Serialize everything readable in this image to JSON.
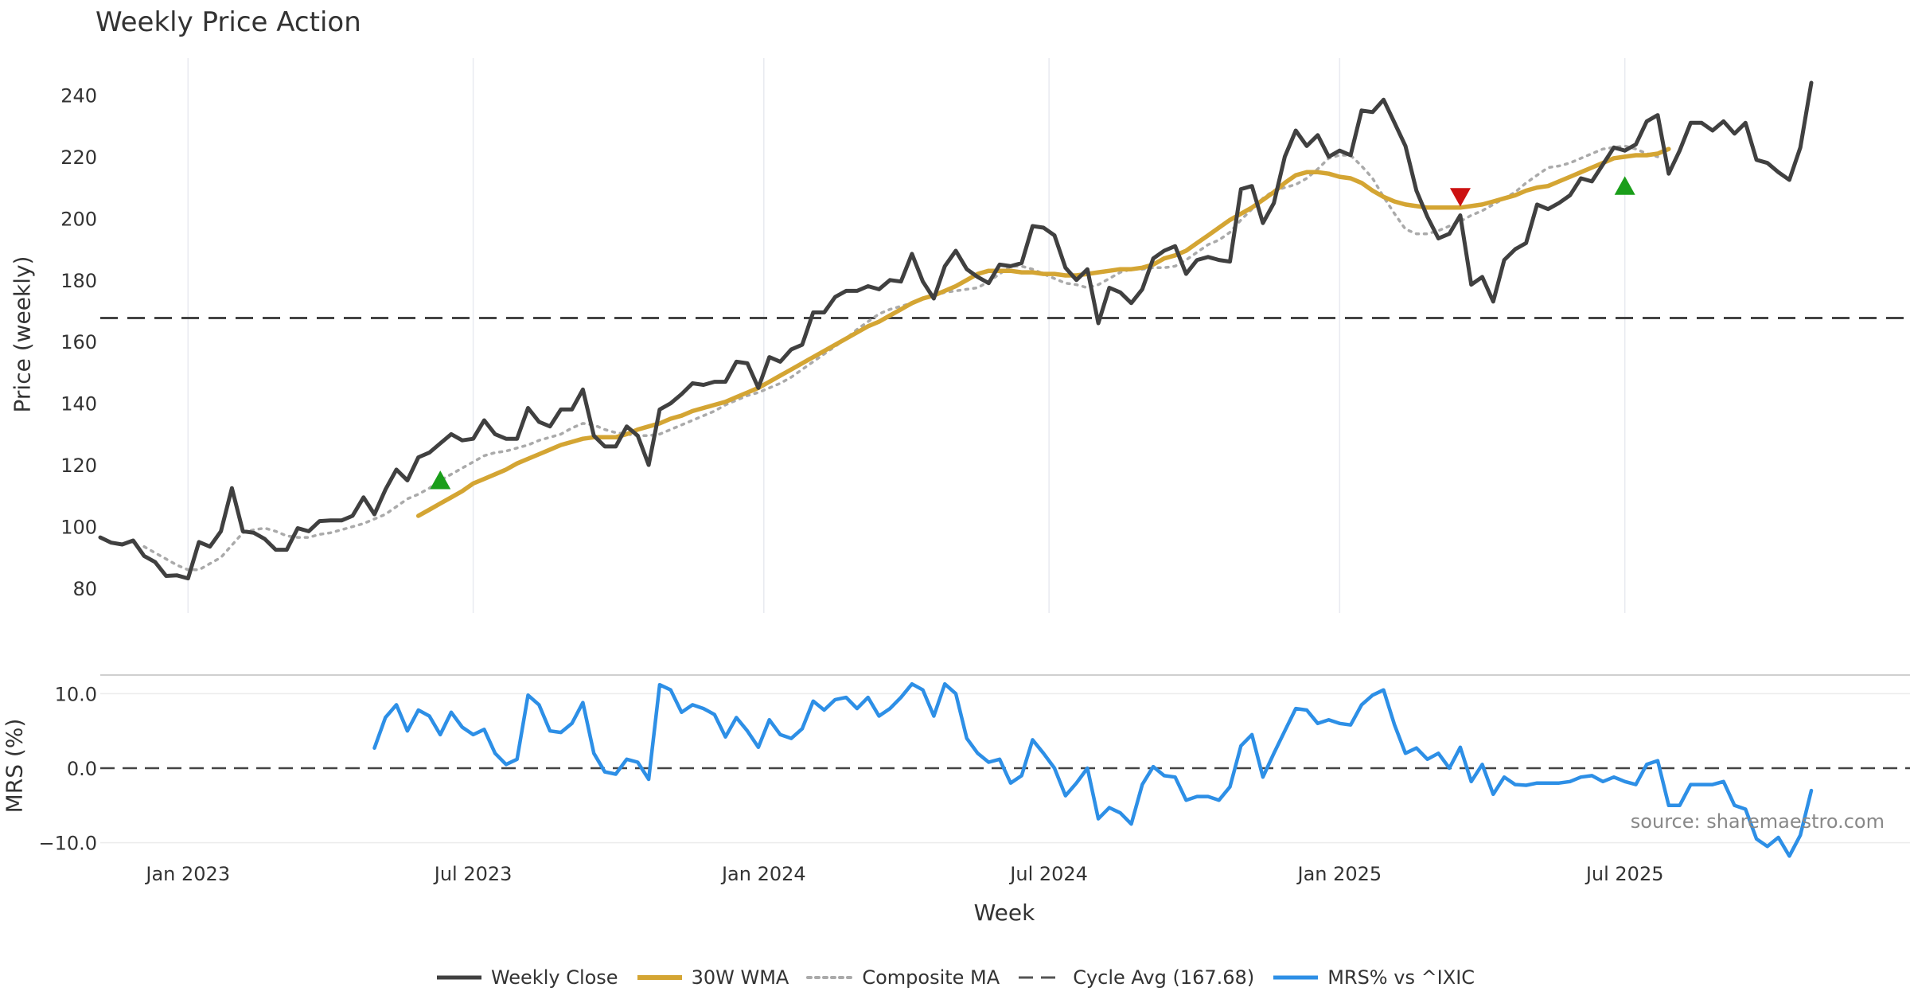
{
  "chart_data": [
    {
      "type": "line",
      "title": "Weekly Price Action",
      "ylabel": "Price (weekly)",
      "xlabel": "Week",
      "ylim": [
        72,
        252
      ],
      "yticks": [
        "80",
        "100",
        "120",
        "140",
        "160",
        "180",
        "200",
        "220",
        "240"
      ],
      "ytick_values": [
        80,
        100,
        120,
        140,
        160,
        180,
        200,
        220,
        240
      ],
      "x_tick_labels": [
        "Jan 2023",
        "Jul 2023",
        "Jan 2024",
        "Jul 2024",
        "Jan 2025",
        "Jul 2025"
      ],
      "x_tick_weeks": [
        3.0,
        29.0,
        55.5,
        81.5,
        108.0,
        134.0
      ],
      "x_range_weeks": [
        -5,
        160
      ],
      "cycle_avg": 167.68,
      "series": [
        {
          "name": "Weekly Close",
          "color": "#404040",
          "start_week": -5,
          "values": [
            96.5,
            94.8,
            94.2,
            95.5,
            90.5,
            88.5,
            84.0,
            84.2,
            83.2,
            95.0,
            93.5,
            98.5,
            112.5,
            98.5,
            98.0,
            96.0,
            92.5,
            92.5,
            99.5,
            98.5,
            101.8,
            102.0,
            102.0,
            103.5,
            109.5,
            104.0,
            112.0,
            118.5,
            115.0,
            122.5,
            124.0,
            127.0,
            130.0,
            128.0,
            128.5,
            134.5,
            130.0,
            128.5,
            128.5,
            138.5,
            134.0,
            132.5,
            138.0,
            138.0,
            144.5,
            129.5,
            126.0,
            126.0,
            132.5,
            129.5,
            120.0,
            138.0,
            140.0,
            143.0,
            146.5,
            146.0,
            147.0,
            147.0,
            153.5,
            153.0,
            145.0,
            155.0,
            153.5,
            157.5,
            159.0,
            169.5,
            169.5,
            174.5,
            176.5,
            176.5,
            178.0,
            177.0,
            180.0,
            179.5,
            188.5,
            179.5,
            174.0,
            184.5,
            189.5,
            183.5,
            181.0,
            179.0,
            185.0,
            184.5,
            185.5,
            197.5,
            197.0,
            194.5,
            184.0,
            180.0,
            183.5,
            166.0,
            177.5,
            176.0,
            172.5,
            177.0,
            187.0,
            189.5,
            191.0,
            182.0,
            186.5,
            187.5,
            186.5,
            186.0,
            209.5,
            210.5,
            198.5,
            205.0,
            220.0,
            228.5,
            223.5,
            227.0,
            220.0,
            222.0,
            220.5,
            235.0,
            234.5,
            238.5,
            231.0,
            223.5,
            209.0,
            200.5,
            193.5,
            195.0,
            201.0,
            178.5,
            181.0,
            173.0,
            186.5,
            190.0,
            192.0,
            204.5,
            203.0,
            205.0,
            207.5,
            213.0,
            212.0,
            217.5,
            223.0,
            222.0,
            224.0,
            231.5,
            233.5,
            214.5,
            222.0,
            231.0,
            231.0,
            228.5,
            231.5,
            227.5,
            231.0,
            219.0,
            218.0,
            215.0,
            212.5,
            223.0,
            244.0
          ]
        },
        {
          "name": "30W WMA",
          "color": "#d4a533",
          "start_week": 24,
          "values": [
            103.5,
            105.5,
            107.5,
            109.5,
            111.5,
            114.0,
            115.5,
            117.0,
            118.5,
            120.5,
            122.0,
            123.5,
            125.0,
            126.5,
            127.5,
            128.5,
            129.0,
            129.0,
            129.0,
            130.0,
            131.5,
            132.5,
            133.5,
            135.0,
            136.0,
            137.5,
            138.5,
            139.5,
            140.5,
            142.0,
            143.5,
            145.0,
            147.0,
            149.0,
            151.0,
            153.0,
            155.0,
            157.0,
            159.0,
            161.0,
            163.0,
            165.0,
            166.5,
            168.5,
            170.5,
            172.5,
            174.0,
            175.0,
            176.5,
            178.0,
            180.0,
            182.0,
            183.0,
            183.0,
            183.0,
            182.5,
            182.5,
            182.0,
            182.0,
            181.5,
            181.5,
            182.0,
            182.5,
            183.0,
            183.5,
            183.5,
            184.0,
            185.0,
            187.0,
            188.0,
            189.5,
            192.0,
            194.5,
            197.0,
            199.5,
            201.5,
            203.5,
            206.0,
            208.5,
            211.5,
            214.0,
            215.0,
            215.0,
            214.5,
            213.5,
            213.0,
            211.5,
            209.0,
            207.0,
            205.5,
            204.5,
            204.0,
            203.5,
            203.5,
            203.5,
            203.5,
            204.0,
            204.5,
            205.5,
            206.5,
            207.5,
            209.0,
            210.0,
            210.5,
            212.0,
            213.5,
            215.0,
            216.5,
            218.0,
            219.5,
            220.0,
            220.5,
            220.5,
            221.0,
            222.5
          ]
        },
        {
          "name": "Composite MA",
          "color": "#aaaaaa",
          "start_week": -1,
          "values": [
            93.5,
            91.5,
            89.5,
            87.5,
            86.0,
            86.0,
            88.0,
            90.0,
            94.0,
            98.0,
            99.0,
            99.5,
            98.5,
            97.0,
            96.5,
            96.5,
            97.5,
            98.0,
            99.0,
            100.0,
            101.0,
            102.5,
            104.0,
            106.5,
            109.0,
            110.5,
            112.5,
            115.0,
            117.0,
            119.0,
            121.0,
            123.0,
            124.0,
            124.5,
            125.5,
            126.5,
            128.0,
            129.0,
            130.0,
            132.0,
            133.5,
            133.0,
            131.5,
            130.5,
            130.0,
            129.5,
            129.5,
            130.0,
            131.5,
            133.0,
            134.5,
            136.0,
            137.5,
            139.5,
            141.0,
            142.5,
            143.5,
            145.0,
            146.5,
            148.5,
            151.0,
            153.5,
            156.0,
            158.5,
            161.0,
            164.0,
            166.5,
            169.0,
            170.5,
            171.5,
            172.5,
            174.0,
            175.0,
            176.0,
            176.5,
            177.0,
            177.5,
            179.5,
            182.0,
            184.5,
            184.5,
            183.5,
            182.0,
            180.5,
            179.0,
            178.5,
            177.5,
            178.5,
            180.5,
            182.5,
            183.5,
            183.5,
            184.0,
            184.0,
            184.5,
            186.5,
            189.0,
            191.5,
            193.0,
            195.5,
            199.5,
            203.0,
            206.5,
            209.0,
            210.0,
            211.0,
            213.0,
            216.0,
            219.5,
            220.5,
            220.5,
            217.0,
            213.0,
            207.0,
            201.5,
            196.5,
            195.0,
            195.0,
            196.0,
            197.5,
            199.0,
            201.0,
            202.5,
            204.5,
            206.5,
            208.5,
            211.5,
            214.0,
            216.5,
            217.0,
            218.0,
            219.5,
            221.0,
            222.5,
            223.0,
            223.5,
            222.5,
            221.0,
            220.0
          ]
        }
      ],
      "markers": [
        {
          "type": "buy",
          "week": 26,
          "value": 115.0,
          "color": "#1a9e1a"
        },
        {
          "type": "sell",
          "week": 119,
          "value": 207.0,
          "color": "#cc1111"
        },
        {
          "type": "buy",
          "week": 134,
          "value": 210.5,
          "color": "#1a9e1a"
        }
      ]
    },
    {
      "type": "line",
      "ylabel": "MRS (%)",
      "ylim": [
        -12.5,
        12.5
      ],
      "yticks": [
        "10.0",
        "0.0",
        "−10.0"
      ],
      "ytick_values": [
        10,
        0,
        -10
      ],
      "zero_line": 0,
      "series": [
        {
          "name": "MRS% vs ^IXIC",
          "color": "#2d8fe6",
          "start_week": 20,
          "values": [
            2.7,
            6.8,
            8.5,
            5.0,
            7.8,
            7.0,
            4.5,
            7.5,
            5.5,
            4.5,
            5.2,
            2.0,
            0.5,
            1.2,
            9.8,
            8.5,
            5.0,
            4.8,
            6.0,
            8.8,
            2.0,
            -0.5,
            -0.8,
            1.2,
            0.8,
            -1.5,
            11.2,
            10.5,
            7.5,
            8.5,
            8.0,
            7.2,
            4.2,
            6.8,
            5.0,
            2.8,
            6.5,
            4.5,
            4.0,
            5.3,
            9.0,
            7.8,
            9.2,
            9.5,
            8.0,
            9.5,
            7.0,
            8.0,
            9.5,
            11.3,
            10.5,
            7.0,
            11.3,
            10.0,
            4.0,
            2.0,
            0.8,
            1.2,
            -2.0,
            -1.0,
            3.8,
            2.0,
            0.0,
            -3.7,
            -2.0,
            0.0,
            -6.8,
            -5.3,
            -6.0,
            -7.5,
            -2.2,
            0.2,
            -1.0,
            -1.2,
            -4.3,
            -3.8,
            -3.8,
            -4.3,
            -2.5,
            3.0,
            4.5,
            -1.2,
            2.0,
            5.0,
            8.0,
            7.8,
            6.0,
            6.5,
            6.0,
            5.8,
            8.5,
            9.8,
            10.5,
            5.8,
            2.0,
            2.7,
            1.2,
            2.0,
            0.0,
            2.8,
            -1.8,
            0.5,
            -3.5,
            -1.2,
            -2.2,
            -2.3,
            -2.0,
            -2.0,
            -2.0,
            -1.8,
            -1.2,
            -1.0,
            -1.8,
            -1.2,
            -1.8,
            -2.2,
            0.5,
            1.0,
            -5.0,
            -5.0,
            -2.2,
            -2.2,
            -2.2,
            -1.8,
            -5.0,
            -5.5,
            -9.5,
            -10.5,
            -9.3,
            -11.8,
            -9.0,
            -3.0
          ]
        }
      ]
    }
  ],
  "legend": {
    "items": [
      {
        "label": "Weekly Close",
        "color": "#404040",
        "style": "solid"
      },
      {
        "label": "30W WMA",
        "color": "#d4a533",
        "style": "solid"
      },
      {
        "label": "Composite MA",
        "color": "#aaaaaa",
        "style": "dotted"
      },
      {
        "label": "Cycle Avg (167.68)",
        "color": "#555555",
        "style": "dashed"
      },
      {
        "label": "MRS% vs ^IXIC",
        "color": "#2d8fe6",
        "style": "solid"
      }
    ]
  },
  "source_note": "source: sharemaestro.com"
}
